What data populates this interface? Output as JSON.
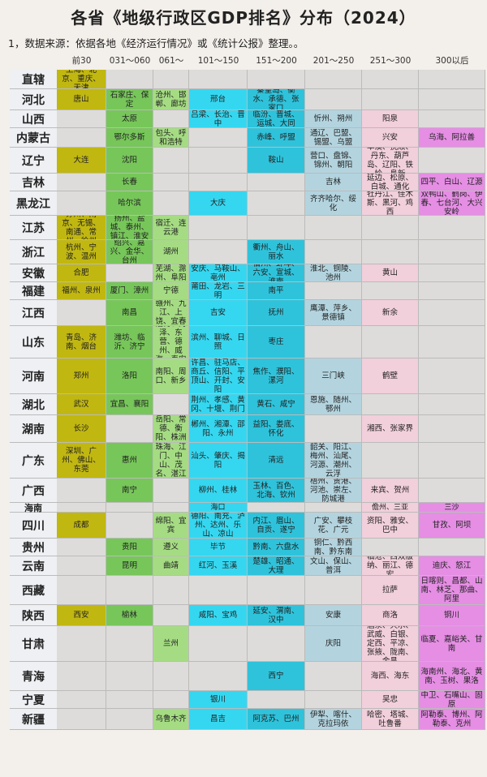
{
  "title": "各省《地级行政区GDP排名》分布（2024）",
  "note": "1，数据来源：依据各地《经济运行情况》或《统计公报》整理。。",
  "colors": [
    "#c1b711",
    "#77c65a",
    "#a5dc83",
    "#35d7f0",
    "#2fc3db",
    "#b3d4df",
    "#f1cfdb",
    "#e58ee4"
  ],
  "headers": [
    "前30",
    "031～060",
    "061～100",
    "101～150",
    "151～200",
    "201～250",
    "251～300",
    "300以后"
  ],
  "rows": [
    {
      "province": "直辖",
      "cells": [
        "上海、北京、重庆、天津",
        "",
        "",
        "",
        "",
        "",
        "",
        ""
      ]
    },
    {
      "province": "河北",
      "cells": [
        "唐山",
        "石家庄、保定",
        "沧州、邯郸、廊坊",
        "邢台",
        "秦皇岛、衡水、承德、张家口",
        "",
        "",
        ""
      ]
    },
    {
      "province": "山西",
      "cells": [
        "",
        "太原",
        "",
        "吕梁、长治、晋中",
        "临汾、晋城、运城、大同",
        "忻州、朔州",
        "阳泉",
        ""
      ]
    },
    {
      "province": "内蒙古",
      "cells": [
        "",
        "鄂尔多斯",
        "包头、呼和浩特",
        "",
        "赤峰、呼盟",
        "通辽、巴盟、锡盟、乌盟",
        "兴安",
        "乌海、阿拉善"
      ]
    },
    {
      "province": "辽宁",
      "cells": [
        "大连",
        "沈阳",
        "",
        "",
        "鞍山",
        "营口、盘锦、锦州、朝阳",
        "本溪、抚顺、丹东、葫芦岛、辽阳、铁岭、阜新",
        ""
      ]
    },
    {
      "province": "吉林",
      "cells": [
        "",
        "长春",
        "",
        "",
        "",
        "吉林",
        "延边、松原、白城、通化",
        "四平、白山、辽源"
      ]
    },
    {
      "province": "黑龙江",
      "cells": [
        "",
        "哈尔滨",
        "",
        "大庆",
        "",
        "齐齐哈尔、绥化",
        "牡丹江、佳木斯、黑河、鸡西",
        "双鸭山、鹤岗、伊春、七台河、大兴安岭"
      ]
    },
    {
      "province": "江苏",
      "cells": [
        "苏州、南京、无锡、南通、常州、徐州",
        "扬州、盐城、泰州、镇江、淮安",
        "宿迁、连云港",
        "",
        "",
        "",
        "",
        ""
      ]
    },
    {
      "province": "浙江",
      "cells": [
        "杭州、宁波、温州",
        "绍兴、嘉兴、金华、台州",
        "湖州",
        "",
        "衢州、舟山、丽水",
        "",
        "",
        ""
      ]
    },
    {
      "province": "安徽",
      "cells": [
        "合肥",
        "",
        "芜湖、滁州、阜阳",
        "安庆、马鞍山、亳州",
        "宿州、蚌埠、六安、宣城、淮南",
        "淮北、铜陵、池州",
        "黄山",
        ""
      ]
    },
    {
      "province": "福建",
      "cells": [
        "福州、泉州",
        "厦门、漳州",
        "宁德",
        "莆田、龙岩、三明",
        "南平",
        "",
        "",
        ""
      ]
    },
    {
      "province": "江西",
      "cells": [
        "",
        "南昌",
        "赣州、九江、上饶、宜春",
        "吉安",
        "抚州",
        "鹰潭、萍乡、景德镇",
        "新余",
        ""
      ]
    },
    {
      "province": "山东",
      "cells": [
        "青岛、济南、烟台",
        "潍坊、临沂、济宁",
        "淄博、菏泽、东营、德州、威海、泰安",
        "滨州、聊城、日照",
        "枣庄",
        "",
        "",
        ""
      ]
    },
    {
      "province": "河南",
      "cells": [
        "郑州",
        "洛阳",
        "南阳、周口、新乡",
        "许昌、驻马店、商丘、信阳、平顶山、开封、安阳",
        "焦作、濮阳、漯河",
        "三门峡",
        "鹤壁",
        ""
      ]
    },
    {
      "province": "湖北",
      "cells": [
        "武汉",
        "宜昌、襄阳",
        "",
        "荆州、孝感、黄冈、十堰、荆门",
        "黄石、咸宁",
        "恩施、随州、鄂州",
        "",
        ""
      ]
    },
    {
      "province": "湖南",
      "cells": [
        "长沙",
        "",
        "岳阳、常德、衡阳、株洲",
        "郴州、湘潭、邵阳、永州",
        "益阳、娄底、怀化",
        "",
        "湘西、张家界",
        ""
      ]
    },
    {
      "province": "广东",
      "cells": [
        "深圳、广州、佛山、东莞",
        "惠州",
        "珠海、江门、中山、茂名、湛江",
        "汕头、肇庆、揭阳",
        "清远",
        "韶关、阳江、梅州、汕尾、河源、潮州、云浮",
        "",
        ""
      ]
    },
    {
      "province": "广西",
      "cells": [
        "",
        "南宁",
        "",
        "柳州、桂林",
        "玉林、百色、北海、钦州",
        "梧州、贵港、河池、崇左、防城港",
        "来宾、贺州",
        ""
      ]
    },
    {
      "province": "海南",
      "cells": [
        "",
        "",
        "",
        "海口",
        "",
        "",
        "儋州、三亚",
        "三沙"
      ]
    },
    {
      "province": "四川",
      "cells": [
        "成都",
        "",
        "绵阳、宜宾",
        "德阳、南充、泸州、达州、乐山、凉山",
        "内江、眉山、自贡、遂宁",
        "广安、攀枝花、广元",
        "资阳、雅安、巴中",
        "甘孜、阿坝"
      ]
    },
    {
      "province": "贵州",
      "cells": [
        "",
        "贵阳",
        "遵义",
        "毕节",
        "黔南、六盘水",
        "铜仁、黔西南、黔东南",
        "",
        ""
      ]
    },
    {
      "province": "云南",
      "cells": [
        "",
        "昆明",
        "曲靖",
        "红河、玉溪",
        "楚雄、昭通、大理",
        "文山、保山、普洱",
        "临沧、西双版纳、丽江、德宏",
        "迪庆、怒江"
      ]
    },
    {
      "province": "西藏",
      "cells": [
        "",
        "",
        "",
        "",
        "",
        "",
        "拉萨",
        "日喀则、昌都、山南、林芝、那曲、阿里"
      ]
    },
    {
      "province": "陕西",
      "cells": [
        "西安",
        "榆林",
        "",
        "咸阳、宝鸡",
        "延安、渭南、汉中",
        "安康",
        "商洛",
        "铜川"
      ]
    },
    {
      "province": "甘肃",
      "cells": [
        "",
        "",
        "兰州",
        "",
        "",
        "庆阳",
        "酒泉、天水、武威、白银、定西、平凉、张掖、陇南、金昌",
        "临夏、嘉峪关、甘南"
      ]
    },
    {
      "province": "青海",
      "cells": [
        "",
        "",
        "",
        "",
        "西宁",
        "",
        "海西、海东",
        "海南州、海北、黄南、玉树、果洛"
      ]
    },
    {
      "province": "宁夏",
      "cells": [
        "",
        "",
        "",
        "银川",
        "",
        "",
        "吴忠",
        "中卫、石嘴山、固原"
      ]
    },
    {
      "province": "新疆",
      "cells": [
        "",
        "",
        "乌鲁木齐",
        "昌吉",
        "阿克苏、巴州",
        "伊犁、喀什、克拉玛依",
        "哈密、塔城、吐鲁番",
        "阿勒泰、博州、阿勒泰、克州"
      ]
    }
  ]
}
